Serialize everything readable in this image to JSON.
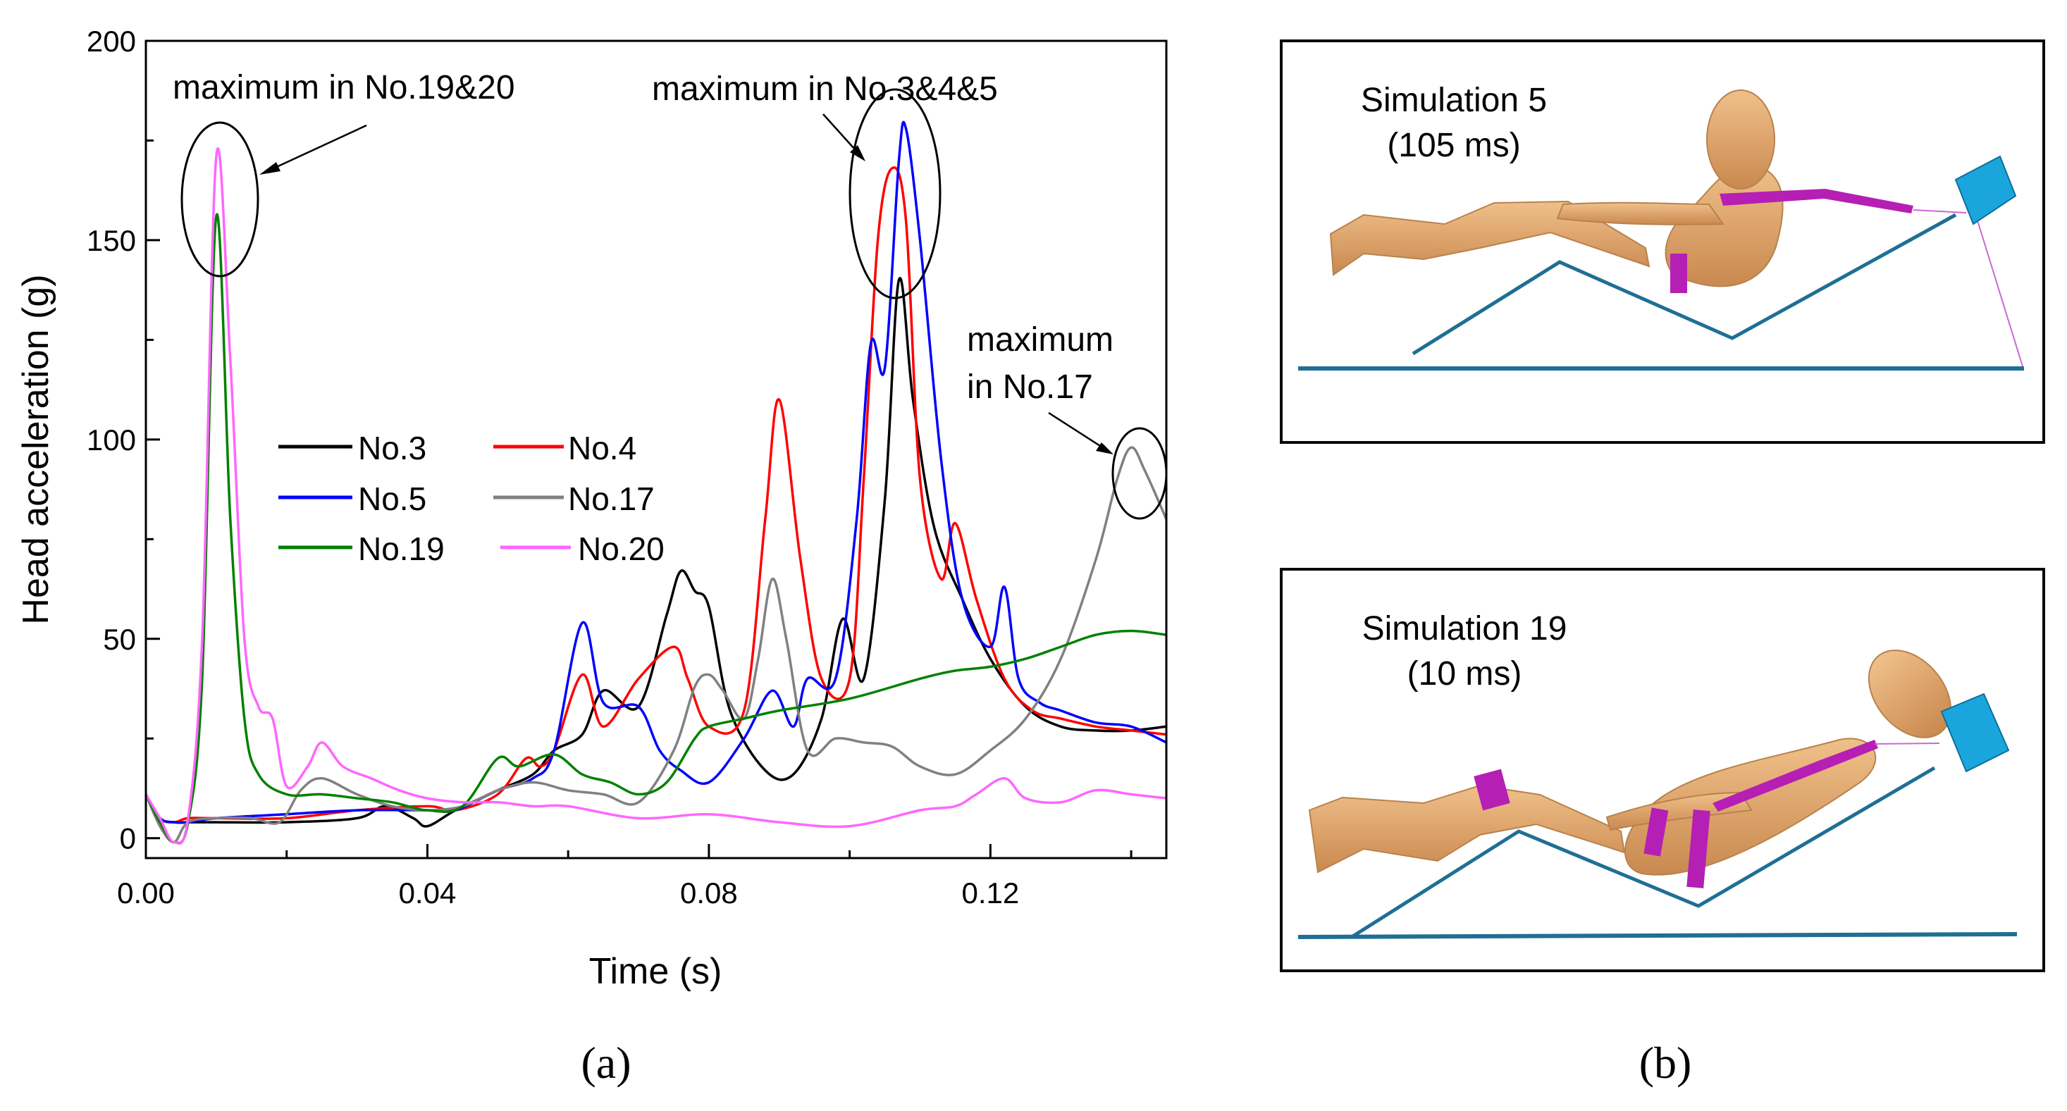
{
  "chart_data": {
    "type": "line",
    "title": "",
    "xlabel": "Time (s)",
    "ylabel": "Head acceleration (g)",
    "xlim": [
      0,
      0.145
    ],
    "ylim": [
      -5,
      200
    ],
    "xticks": [
      0,
      0.04,
      0.08,
      0.12
    ],
    "xtick_labels": [
      "0.00",
      "0.04",
      "0.08",
      "0.12"
    ],
    "yticks": [
      0,
      50,
      100,
      150,
      200
    ],
    "ytick_labels": [
      "0",
      "50",
      "100",
      "150",
      "200"
    ],
    "legend_position": "center-left",
    "series": [
      {
        "name": "No.3",
        "color": "#000000",
        "x": [
          0,
          0.002,
          0.004,
          0.006,
          0.01,
          0.02,
          0.03,
          0.034,
          0.038,
          0.04,
          0.044,
          0.05,
          0.055,
          0.058,
          0.062,
          0.065,
          0.07,
          0.074,
          0.076,
          0.078,
          0.08,
          0.083,
          0.088,
          0.092,
          0.096,
          0.099,
          0.102,
          0.105,
          0.107,
          0.109,
          0.112,
          0.116,
          0.12,
          0.125,
          0.13,
          0.135,
          0.14,
          0.145
        ],
        "y": [
          11,
          5,
          4,
          4,
          4,
          4,
          5,
          8,
          5,
          3,
          7,
          12,
          16,
          22,
          26,
          37,
          33,
          56,
          67,
          62,
          58,
          32,
          17,
          16,
          30,
          55,
          40,
          85,
          140,
          110,
          78,
          60,
          45,
          33,
          28,
          27,
          27,
          28
        ]
      },
      {
        "name": "No.4",
        "color": "#ff0000",
        "x": [
          0,
          0.002,
          0.004,
          0.006,
          0.01,
          0.02,
          0.03,
          0.04,
          0.044,
          0.05,
          0.054,
          0.056,
          0.058,
          0.062,
          0.065,
          0.07,
          0.075,
          0.077,
          0.08,
          0.085,
          0.088,
          0.09,
          0.093,
          0.096,
          0.1,
          0.102,
          0.104,
          0.106,
          0.108,
          0.11,
          0.113,
          0.115,
          0.118,
          0.122,
          0.126,
          0.13,
          0.135,
          0.14,
          0.145
        ],
        "y": [
          11,
          5,
          4,
          5,
          5,
          5,
          7,
          8,
          7,
          11,
          20,
          18,
          22,
          41,
          28,
          40,
          48,
          40,
          28,
          32,
          80,
          110,
          70,
          40,
          40,
          90,
          150,
          168,
          155,
          90,
          65,
          79,
          60,
          40,
          32,
          30,
          28,
          27,
          26
        ]
      },
      {
        "name": "No.5",
        "color": "#0000ff",
        "x": [
          0,
          0.002,
          0.004,
          0.006,
          0.01,
          0.02,
          0.03,
          0.04,
          0.044,
          0.05,
          0.055,
          0.058,
          0.062,
          0.065,
          0.07,
          0.073,
          0.076,
          0.08,
          0.085,
          0.089,
          0.092,
          0.094,
          0.098,
          0.101,
          0.103,
          0.105,
          0.107,
          0.108,
          0.11,
          0.113,
          0.116,
          0.12,
          0.122,
          0.124,
          0.127,
          0.13,
          0.135,
          0.14,
          0.145
        ],
        "y": [
          11,
          5,
          4,
          4,
          5,
          6,
          7,
          7,
          7,
          12,
          15,
          22,
          54,
          34,
          33,
          22,
          17,
          14,
          25,
          37,
          28,
          40,
          40,
          80,
          124,
          118,
          170,
          178,
          150,
          95,
          60,
          48,
          63,
          40,
          34,
          32,
          29,
          28,
          24
        ]
      },
      {
        "name": "No.17",
        "color": "#808080",
        "x": [
          0,
          0.002,
          0.004,
          0.006,
          0.01,
          0.015,
          0.019,
          0.022,
          0.025,
          0.03,
          0.035,
          0.04,
          0.045,
          0.05,
          0.055,
          0.06,
          0.065,
          0.07,
          0.075,
          0.078,
          0.08,
          0.082,
          0.085,
          0.087,
          0.089,
          0.091,
          0.094,
          0.098,
          0.102,
          0.106,
          0.11,
          0.115,
          0.12,
          0.125,
          0.13,
          0.135,
          0.138,
          0.14,
          0.142,
          0.145
        ],
        "y": [
          11,
          3,
          -1,
          4,
          5,
          5,
          4,
          12,
          15,
          11,
          8,
          7,
          8,
          12,
          14,
          12,
          11,
          9,
          22,
          38,
          41,
          37,
          30,
          45,
          65,
          50,
          22,
          25,
          24,
          23,
          18,
          16,
          22,
          30,
          45,
          70,
          90,
          98,
          92,
          80
        ]
      },
      {
        "name": "No.19",
        "color": "#008000",
        "x": [
          0,
          0.002,
          0.004,
          0.006,
          0.008,
          0.01,
          0.012,
          0.014,
          0.016,
          0.02,
          0.025,
          0.03,
          0.035,
          0.04,
          0.045,
          0.05,
          0.053,
          0.058,
          0.062,
          0.066,
          0.07,
          0.074,
          0.078,
          0.08,
          0.085,
          0.09,
          0.1,
          0.11,
          0.115,
          0.12,
          0.125,
          0.13,
          0.135,
          0.14,
          0.145
        ],
        "y": [
          11,
          4,
          -1,
          4,
          40,
          156,
          80,
          30,
          16,
          11,
          11,
          10,
          9,
          7,
          8,
          20,
          18,
          21,
          16,
          14,
          11,
          14,
          25,
          28,
          30,
          32,
          35,
          40,
          42,
          43,
          45,
          48,
          51,
          52,
          51
        ]
      },
      {
        "name": "No.20",
        "color": "#ff66ff",
        "x": [
          0,
          0.002,
          0.004,
          0.006,
          0.008,
          0.01,
          0.012,
          0.014,
          0.016,
          0.018,
          0.02,
          0.023,
          0.025,
          0.028,
          0.032,
          0.036,
          0.04,
          0.045,
          0.05,
          0.055,
          0.06,
          0.07,
          0.08,
          0.09,
          0.1,
          0.11,
          0.115,
          0.118,
          0.122,
          0.125,
          0.13,
          0.135,
          0.14,
          0.145
        ],
        "y": [
          11,
          5,
          -1,
          5,
          50,
          171,
          120,
          50,
          33,
          30,
          13,
          18,
          24,
          18,
          15,
          12,
          10,
          9,
          9,
          8,
          8,
          5,
          6,
          4,
          3,
          7,
          8,
          11,
          15,
          10,
          9,
          12,
          11,
          10
        ]
      }
    ],
    "annotations": [
      {
        "text": "maximum in No.19&20",
        "target_series": [
          "No.19",
          "No.20"
        ],
        "target": [
          0.0105,
          163
        ]
      },
      {
        "text": "maximum in No.3&4&5",
        "target_series": [
          "No.3",
          "No.4",
          "No.5"
        ],
        "target": [
          0.107,
          162
        ]
      },
      {
        "text_lines": [
          "maximum",
          "in No.17"
        ],
        "target_series": [
          "No.17"
        ],
        "target": [
          0.14,
          93
        ]
      }
    ]
  },
  "panel_a_label": "(a)",
  "panel_b_label": "(b)",
  "sim5_title": "Simulation 5",
  "sim5_time": "(105 ms)",
  "sim19_title": "Simulation 19",
  "sim19_time": "(10 ms)",
  "colors": {
    "frame": "#0a0a0a",
    "ramp": "#1f6f94",
    "body": "#e2a86c",
    "body_shade": "#c9894f",
    "belt": "#b51fb4",
    "headrest": "#1aa6dc"
  }
}
